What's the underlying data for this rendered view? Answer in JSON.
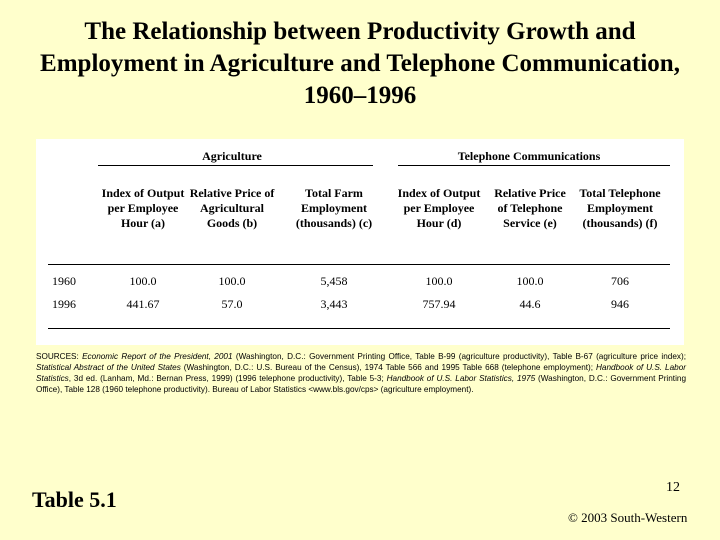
{
  "title": "The Relationship between Productivity Growth and Employment in Agriculture and Telephone Communication, 1960–1996",
  "table": {
    "groups": [
      "Agriculture",
      "Telephone Communications"
    ],
    "columns": [
      "Index of Output per Employee Hour (a)",
      "Relative Price of Agricultural Goods (b)",
      "Total Farm Employment (thousands) (c)",
      "Index of Output per Employee Hour (d)",
      "Relative Price of Telephone Service (e)",
      "Total Telephone Employment (thousands) (f)"
    ],
    "rows": [
      {
        "year": "1960",
        "values": [
          "100.0",
          "100.0",
          "5,458",
          "100.0",
          "100.0",
          "706"
        ]
      },
      {
        "year": "1996",
        "values": [
          "441.67",
          "57.0",
          "3,443",
          "757.94",
          "44.6",
          "946"
        ]
      }
    ]
  },
  "sources": {
    "s1": "SOURCES: ",
    "s2": "Economic Report of the President, 2001",
    "s3": " (Washington, D.C.: Government Printing Office, Table B-99 (agriculture productivity), Table B-67 (agriculture price index); ",
    "s4": "Statistical Abstract of the United States",
    "s5": " (Washington, D.C.: U.S. Bureau of the Census), 1974 Table 566 and 1995 Table 668 (telephone employment); ",
    "s6": "Handbook of U.S. Labor Statistics",
    "s7": ", 3d ed. (Lanham, Md.: Bernan Press, 1999) (1996 telephone productivity), Table 5-3; ",
    "s8": "Handbook of U.S. Labor Statistics, 1975",
    "s9": " (Washington, D.C.: Government Printing Office), Table 128 (1960 telephone productivity). Bureau of Labor Statistics <www.bls.gov/cps> (agriculture employment)."
  },
  "footer": {
    "table_label": "Table 5.1",
    "page_number": "12",
    "copyright": "© 2003 South-Western"
  }
}
